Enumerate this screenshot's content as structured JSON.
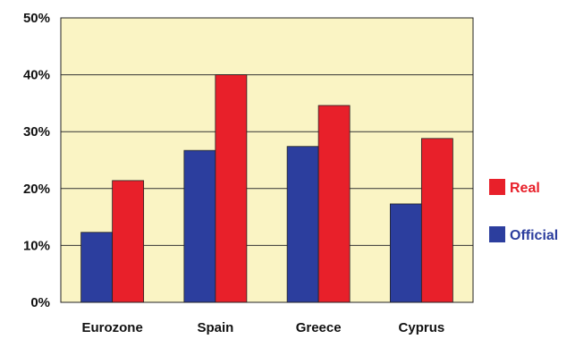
{
  "chart_data": {
    "type": "bar",
    "categories": [
      "Eurozone",
      "Spain",
      "Greece",
      "Cyprus"
    ],
    "series": [
      {
        "name": "Official",
        "color": "#2c3e9e",
        "values": [
          12.3,
          26.7,
          27.4,
          17.3
        ]
      },
      {
        "name": "Real",
        "color": "#e8202a",
        "values": [
          21.4,
          40.0,
          34.6,
          28.8
        ]
      }
    ],
    "ylim": [
      0,
      50
    ],
    "yticks": [
      "0%",
      "10%",
      "20%",
      "30%",
      "40%",
      "50%"
    ],
    "grid": true,
    "legend_position": "right",
    "legend_order": [
      "Real",
      "Official"
    ],
    "plot_background": "#faf4c4",
    "title": "",
    "xlabel": "",
    "ylabel": ""
  }
}
